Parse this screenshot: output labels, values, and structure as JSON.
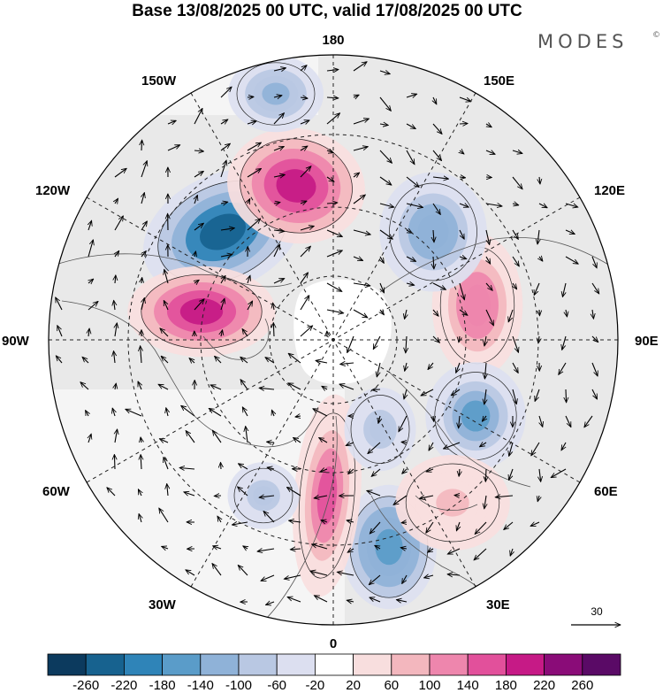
{
  "title": "Base 13/08/2025 00 UTC, valid 17/08/2025 00 UTC",
  "brand": "MODES",
  "brand_mark": "©",
  "longitude_labels": {
    "top": "180",
    "bottom": "0",
    "left": "90W",
    "right": "90E",
    "upper_left_1": "150W",
    "upper_left_2": "120W",
    "upper_right_1": "150E",
    "upper_right_2": "120E",
    "lower_left_1": "60W",
    "lower_left_2": "30W",
    "lower_right_1": "60E",
    "lower_right_2": "30E"
  },
  "vector_reference": {
    "label": "30"
  },
  "colorbar": {
    "ticks": [
      "-260",
      "-220",
      "-180",
      "-140",
      "-100",
      "-60",
      "-20",
      "20",
      "60",
      "100",
      "140",
      "180",
      "220",
      "260"
    ],
    "colors": [
      "#0c3a5e",
      "#17628f",
      "#2f84b8",
      "#5a9cc9",
      "#8fb2d8",
      "#b9c8e3",
      "#dcdff0",
      "#ffffff",
      "#f8dede",
      "#f3b7be",
      "#ee86ad",
      "#e2509b",
      "#c61a86",
      "#8a0c78",
      "#5a0a66"
    ]
  },
  "anomaly_centers": [
    {
      "name": "low-nw-canada",
      "value": -230
    },
    {
      "name": "high-bering",
      "value": 210
    },
    {
      "name": "high-hudson",
      "value": 200
    },
    {
      "name": "high-siberia",
      "value": 130
    },
    {
      "name": "low-east-siberia",
      "value": -130
    },
    {
      "name": "low-west-siberia",
      "value": -150
    },
    {
      "name": "low-europe",
      "value": -170
    },
    {
      "name": "high-greenland-sea",
      "value": 140
    },
    {
      "name": "low-aleutian",
      "value": -120
    },
    {
      "name": "high-east-europe",
      "value": 70
    },
    {
      "name": "low-barents",
      "value": -80
    },
    {
      "name": "low-atlantic",
      "value": -90
    }
  ]
}
